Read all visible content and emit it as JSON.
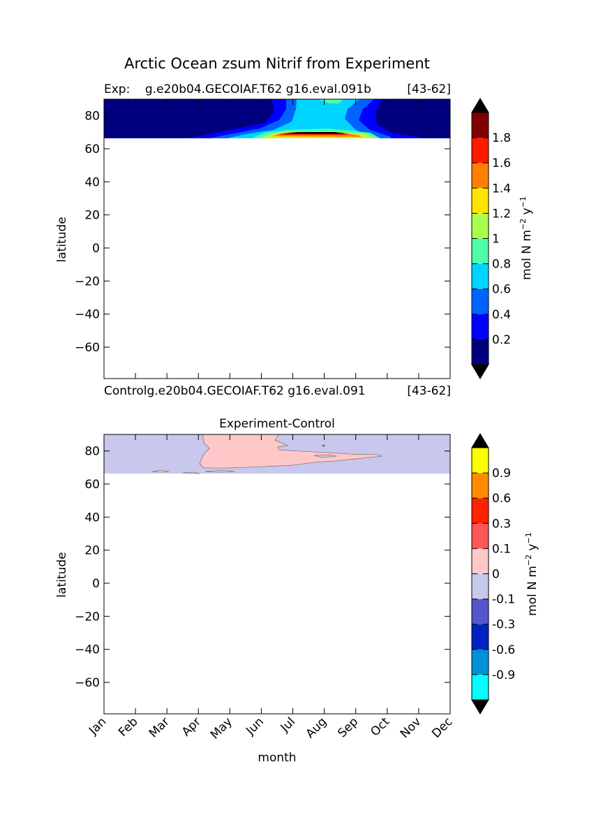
{
  "figure": {
    "title": "Arctic Ocean zsum Nitrif from Experiment"
  },
  "chart_data": [
    {
      "type": "heatmap",
      "panel": "top",
      "title_left": "Exp:    g.e20b04.GECOIAF.T62 g16.eval.091b",
      "title_right": "[43-62]",
      "ylabel": "latitude",
      "xlabel": "",
      "ylim": [
        -79,
        90
      ],
      "yticks": [
        -60,
        -40,
        -20,
        0,
        20,
        40,
        60,
        80
      ],
      "xlim": [
        0,
        11
      ],
      "xticks": [
        "Jan",
        "Feb",
        "Mar",
        "Apr",
        "May",
        "Jun",
        "Jul",
        "Aug",
        "Sep",
        "Oct",
        "Nov",
        "Dec"
      ],
      "data_lat_range": [
        66,
        90
      ],
      "colorbar": {
        "label": "mol N m⁻² y⁻¹",
        "levels": [
          0,
          0.2,
          0.4,
          0.6,
          0.8,
          1.0,
          1.2,
          1.4,
          1.6,
          1.8,
          2.0
        ],
        "tick_labels": [
          "0.2",
          "0.4",
          "0.6",
          "0.8",
          "1",
          "1.2",
          "1.4",
          "1.6",
          "1.8"
        ],
        "colors": [
          "#00007f",
          "#0000ff",
          "#0063ff",
          "#00d5ff",
          "#4effa9",
          "#a9ff4e",
          "#ffe600",
          "#ff8000",
          "#ff1a00",
          "#800000"
        ],
        "extend": "both",
        "extend_colors": [
          "#000000",
          "#000000"
        ]
      }
    },
    {
      "type": "heatmap",
      "panel": "bottom",
      "subtitle_left": "Controlg.e20b04.GECOIAF.T62 g16.eval.091",
      "subtitle_right": "[43-62]",
      "title": "Experiment-Control",
      "ylabel": "latitude",
      "xlabel": "month",
      "ylim": [
        -79,
        90
      ],
      "yticks": [
        -60,
        -40,
        -20,
        0,
        20,
        40,
        60,
        80
      ],
      "xlim": [
        0,
        11
      ],
      "xticks": [
        "Jan",
        "Feb",
        "Mar",
        "Apr",
        "May",
        "Jun",
        "Jul",
        "Aug",
        "Sep",
        "Oct",
        "Nov",
        "Dec"
      ],
      "data_lat_range": [
        66,
        90
      ],
      "colorbar": {
        "label": "mol N m⁻² y⁻¹",
        "levels": [
          -1.2,
          -0.9,
          -0.6,
          -0.3,
          -0.1,
          0,
          0.1,
          0.3,
          0.6,
          0.9,
          1.2
        ],
        "tick_labels": [
          "-0.9",
          "-0.6",
          "-0.3",
          "-0.1",
          "0",
          "0.1",
          "0.3",
          "0.6",
          "0.9"
        ],
        "colors": [
          "#00ffff",
          "#0091d9",
          "#0024bf",
          "#5555cc",
          "#c8c8ec",
          "#ffc8c8",
          "#ff5555",
          "#ff2400",
          "#ff8c00",
          "#ffff00"
        ],
        "extend": "both",
        "extend_colors": [
          "#000000",
          "#000000"
        ]
      }
    }
  ]
}
